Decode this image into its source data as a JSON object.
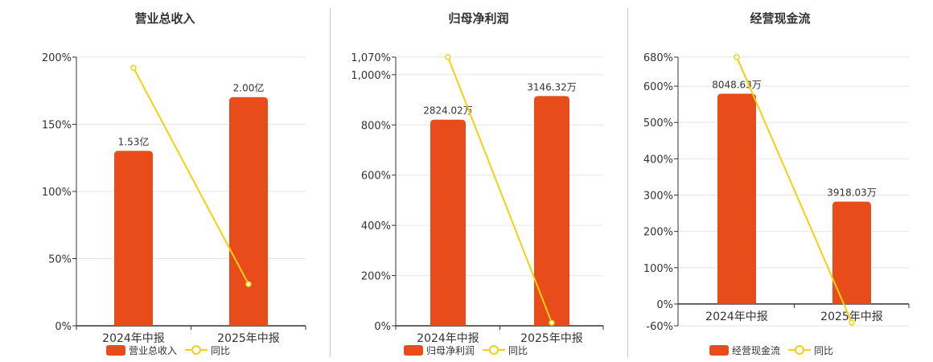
{
  "colors": {
    "bar": "#e84c1a",
    "line": "#f2d10e",
    "grid": "#e6e6e6",
    "axis": "#333333"
  },
  "legend": {
    "yoy_label": "同比"
  },
  "chart_data": [
    {
      "type": "bar",
      "title": "营业总收入",
      "categories": [
        "2024年中报",
        "2025年中报"
      ],
      "series": [
        {
          "name": "营业总收入",
          "type": "bar",
          "values": [
            1.53,
            2.0
          ],
          "labels": [
            "1.53亿",
            "2.00亿"
          ]
        },
        {
          "name": "同比",
          "type": "line",
          "values": [
            192,
            31
          ]
        }
      ],
      "y_ticks": [
        "0%",
        "50%",
        "100%",
        "150%",
        "200%"
      ],
      "ylim_percent": [
        0,
        200
      ],
      "bar_scale_max": 2.35,
      "grid": true,
      "legend_position": "bottom"
    },
    {
      "type": "bar",
      "title": "归母净利润",
      "categories": [
        "2024年中报",
        "2025年中报"
      ],
      "series": [
        {
          "name": "归母净利润",
          "type": "bar",
          "values": [
            2824.02,
            3146.32
          ],
          "labels": [
            "2824.02万",
            "3146.32万"
          ]
        },
        {
          "name": "同比",
          "type": "line",
          "values": [
            1070,
            12
          ]
        }
      ],
      "y_ticks": [
        "0%",
        "200%",
        "400%",
        "600%",
        "800%",
        "1,000%",
        "1,070%"
      ],
      "ylim_percent": [
        0,
        1070
      ],
      "bar_scale_max": 3680,
      "grid": true,
      "legend_position": "bottom"
    },
    {
      "type": "bar",
      "title": "经营现金流",
      "categories": [
        "2024年中报",
        "2025年中报"
      ],
      "series": [
        {
          "name": "经营现金流",
          "type": "bar",
          "values": [
            8048.63,
            3918.03
          ],
          "labels": [
            "8048.63万",
            "3918.03万"
          ]
        },
        {
          "name": "同比",
          "type": "line",
          "values": [
            680,
            -51
          ]
        }
      ],
      "y_ticks": [
        "-60%",
        "0%",
        "100%",
        "200%",
        "300%",
        "400%",
        "500%",
        "600%",
        "680%"
      ],
      "ylim_percent": [
        -60,
        680
      ],
      "bar_scale_max": 9450,
      "grid": true,
      "legend_position": "bottom"
    }
  ]
}
